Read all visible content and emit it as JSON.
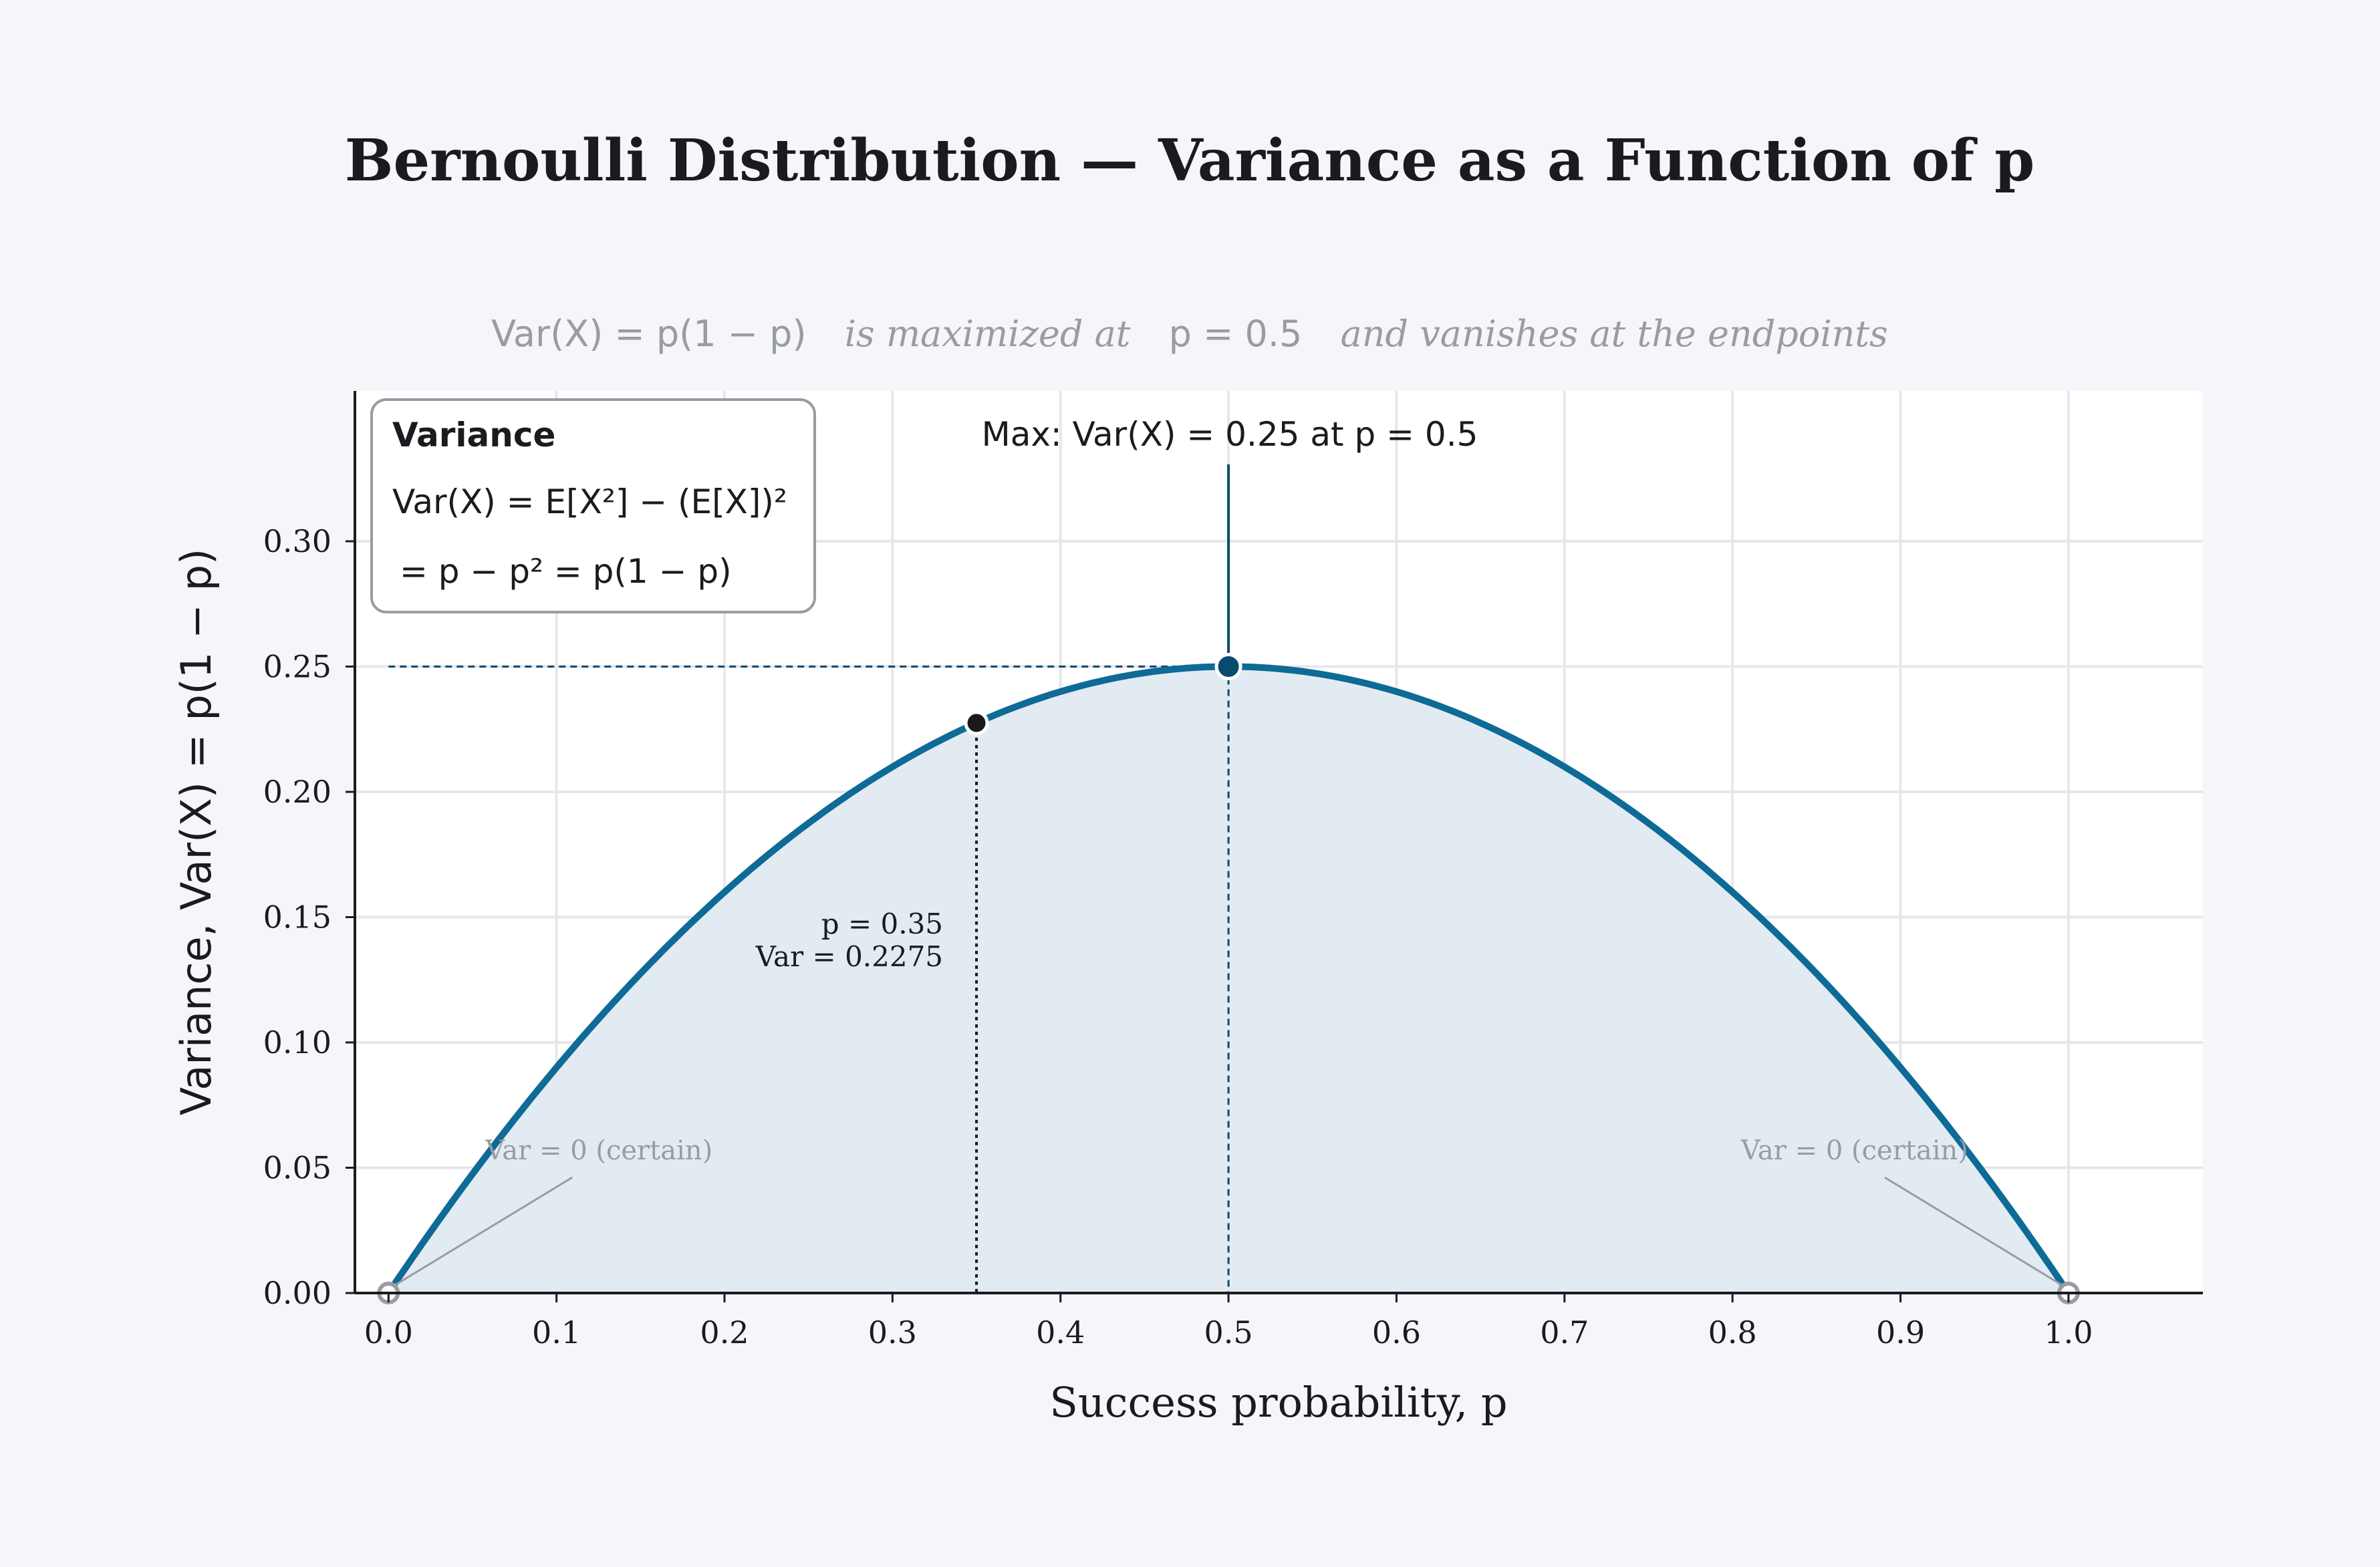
{
  "chart_data": {
    "type": "line",
    "title": "Bernoulli Distribution — Variance as a Function of p",
    "subtitle": {
      "formula": "Var(X) = p(1 − p)",
      "text1": "is maximized at",
      "pvalue": "p = 0.5",
      "text2": "and vanishes at the endpoints"
    },
    "xlabel": "Success probability, p",
    "ylabel": "Variance,  Var(X) = p(1 − p)",
    "xlim": [
      -0.02,
      1.08
    ],
    "ylim": [
      0,
      0.36
    ],
    "xticks": [
      0.0,
      0.1,
      0.2,
      0.3,
      0.4,
      0.5,
      0.6,
      0.7,
      0.8,
      0.9,
      1.0
    ],
    "xtick_labels": [
      "0.0",
      "0.1",
      "0.2",
      "0.3",
      "0.4",
      "0.5",
      "0.6",
      "0.7",
      "0.8",
      "0.9",
      "1.0"
    ],
    "yticks": [
      0.0,
      0.05,
      0.1,
      0.15,
      0.2,
      0.25,
      0.3
    ],
    "ytick_labels": [
      "0.00",
      "0.05",
      "0.10",
      "0.15",
      "0.20",
      "0.25",
      "0.30"
    ],
    "grid": true,
    "series": [
      {
        "formula": "p(1-p)",
        "x": [
          0.0,
          0.05,
          0.1,
          0.15,
          0.2,
          0.25,
          0.3,
          0.35,
          0.4,
          0.45,
          0.5,
          0.55,
          0.6,
          0.65,
          0.7,
          0.75,
          0.8,
          0.85,
          0.9,
          0.95,
          1.0
        ],
        "y": [
          0.0,
          0.0475,
          0.09,
          0.1275,
          0.16,
          0.1875,
          0.21,
          0.2275,
          0.24,
          0.2475,
          0.25,
          0.2475,
          0.24,
          0.2275,
          0.21,
          0.1875,
          0.16,
          0.1275,
          0.09,
          0.0475,
          0.0
        ],
        "color": "#0e6a96",
        "fill": "#e2eaf2"
      }
    ],
    "max_point": {
      "x": 0.5,
      "y": 0.25,
      "label": "Max:  Var(X) = 0.25 at p = 0.5"
    },
    "marked_point": {
      "x": 0.35,
      "y": 0.2275,
      "label_line1": "p = 0.35",
      "label_line2": "Var = 0.2275"
    },
    "endpoints": [
      {
        "x": 0.0,
        "y": 0.0,
        "label": "Var = 0 (certain)"
      },
      {
        "x": 1.0,
        "y": 0.0,
        "label": "Var = 0 (certain)"
      }
    ],
    "legend_box": {
      "title": "Variance",
      "line1": "Var(X) = E[X²] − (E[X])²",
      "line2": "= p − p² = p(1 − p)",
      "placement": "top-left"
    },
    "colors": {
      "background": "#f5f6fa",
      "plot_bg": "#ffffff",
      "grid": "#e6e7ec",
      "curve": "#0e6a96",
      "fill": "#e2eaf2",
      "max_marker": "#0b4a6f",
      "point_marker": "#1a1a1a",
      "muted_text": "#9a9ba3"
    }
  }
}
